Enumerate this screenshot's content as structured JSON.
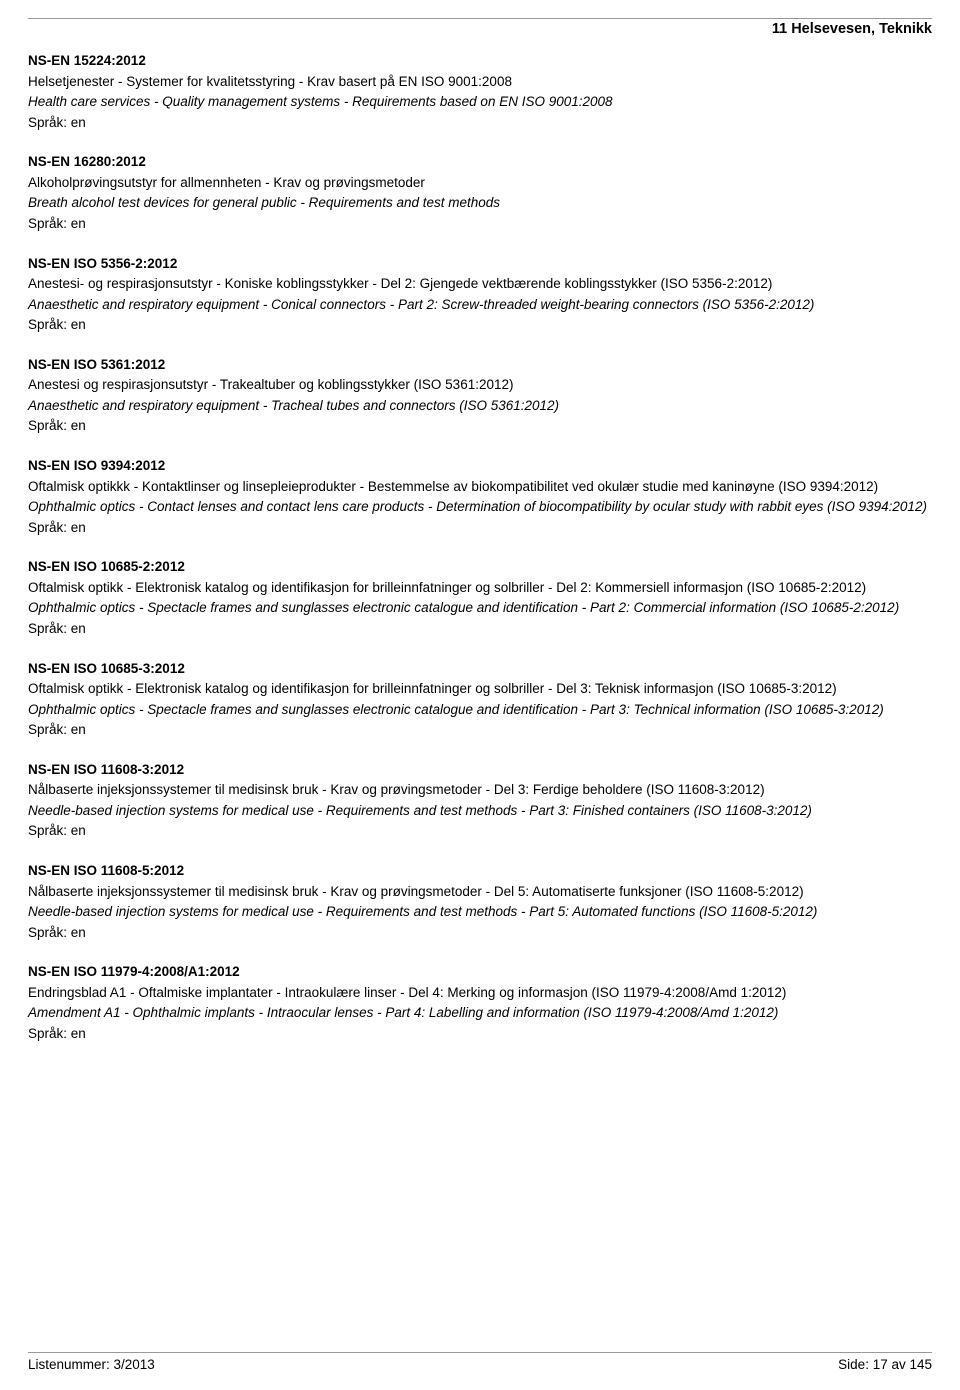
{
  "category": "11  Helsevesen, Teknikk",
  "langLabel": "Språk: en",
  "entries": [
    {
      "code": "NS-EN 15224:2012",
      "title_no": "Helsetjenester - Systemer for kvalitetsstyring - Krav basert på EN ISO 9001:2008",
      "title_en": "Health care services - Quality management systems - Requirements based on EN ISO 9001:2008"
    },
    {
      "code": "NS-EN 16280:2012",
      "title_no": "Alkoholprøvingsutstyr for allmennheten - Krav og prøvingsmetoder",
      "title_en": "Breath alcohol test devices for general public - Requirements and test methods"
    },
    {
      "code": "NS-EN ISO 5356-2:2012",
      "title_no": "Anestesi- og respirasjonsutstyr - Koniske koblingsstykker - Del 2: Gjengede vektbærende koblingsstykker (ISO 5356-2:2012)",
      "title_en": "Anaesthetic and respiratory equipment - Conical connectors - Part 2: Screw-threaded weight-bearing connectors (ISO 5356-2:2012)"
    },
    {
      "code": "NS-EN ISO 5361:2012",
      "title_no": "Anestesi og respirasjonsutstyr - Trakealtuber og koblingsstykker (ISO 5361:2012)",
      "title_en": "Anaesthetic and respiratory equipment - Tracheal tubes and connectors (ISO 5361:2012)"
    },
    {
      "code": "NS-EN ISO 9394:2012",
      "title_no": "Oftalmisk optikkk - Kontaktlinser og linsepleieprodukter - Bestemmelse av biokompatibilitet ved okulær studie med kaninøyne (ISO 9394:2012)",
      "title_en": "Ophthalmic optics - Contact lenses and contact lens care products - Determination of biocompatibility by ocular study with rabbit eyes  (ISO 9394:2012)"
    },
    {
      "code": "NS-EN ISO 10685-2:2012",
      "title_no": "Oftalmisk optikk - Elektronisk katalog og identifikasjon for brilleinnfatninger og solbriller - Del 2: Kommersiell informasjon (ISO 10685-2:2012)",
      "title_en": "Ophthalmic optics - Spectacle frames and sunglasses electronic catalogue and identification - Part 2: Commercial information (ISO 10685-2:2012)"
    },
    {
      "code": "NS-EN ISO 10685-3:2012",
      "title_no": "Oftalmisk optikk - Elektronisk katalog og identifikasjon for brilleinnfatninger og solbriller - Del 3: Teknisk informasjon (ISO 10685-3:2012)",
      "title_en": "Ophthalmic optics - Spectacle frames and sunglasses electronic catalogue and identification - Part 3: Technical information (ISO 10685-3:2012)"
    },
    {
      "code": "NS-EN ISO 11608-3:2012",
      "title_no": "Nålbaserte injeksjonssystemer til medisinsk bruk - Krav og prøvingsmetoder - Del 3: Ferdige beholdere (ISO 11608-3:2012)",
      "title_en": "Needle-based injection systems for medical use - Requirements and test methods - Part 3: Finished containers (ISO 11608-3:2012)"
    },
    {
      "code": "NS-EN ISO 11608-5:2012",
      "title_no": "Nålbaserte injeksjonssystemer til medisinsk bruk - Krav og prøvingsmetoder - Del 5: Automatiserte funksjoner (ISO 11608-5:2012)",
      "title_en": "Needle-based injection systems for medical use - Requirements and test methods - Part 5: Automated functions (ISO 11608-5:2012)"
    },
    {
      "code": "NS-EN ISO 11979-4:2008/A1:2012",
      "title_no": "Endringsblad A1 - Oftalmiske implantater - Intraokulære linser - Del 4: Merking og informasjon (ISO 11979-4:2008/Amd 1:2012)",
      "title_en": "Amendment A1 - Ophthalmic implants - Intraocular lenses - Part 4: Labelling and information (ISO 11979-4:2008/Amd 1:2012)"
    }
  ],
  "footer": {
    "left": "Listenummer: 3/2013",
    "right": "Side: 17 av 145"
  }
}
